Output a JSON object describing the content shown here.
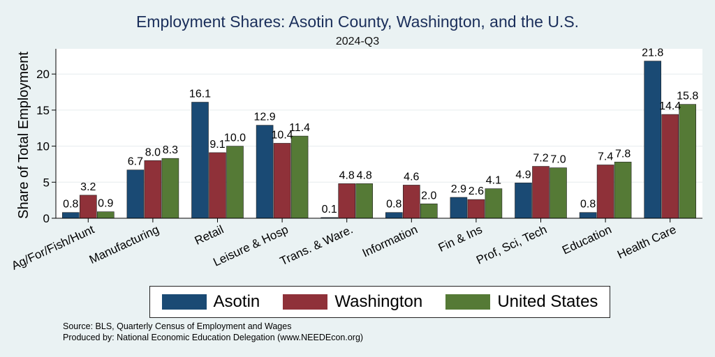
{
  "chart_data": {
    "type": "bar",
    "title": "Employment Shares: Asotin County, Washington, and the U.S.",
    "subtitle": "2024-Q3",
    "ylabel": "Share of Total Employment",
    "xlabel": "",
    "ylim": [
      0,
      23.5
    ],
    "yticks": [
      0,
      5,
      10,
      15,
      20
    ],
    "grid": true,
    "legend": "bottom",
    "categories": [
      "Ag/For/Fish/Hunt",
      "Manufacturing",
      "Retail",
      "Leisure & Hosp",
      "Trans. & Ware.",
      "Information",
      "Fin & Ins",
      "Prof, Sci, Tech",
      "Education",
      "Health Care"
    ],
    "series": [
      {
        "name": "Asotin",
        "color": "#1a4a74",
        "values": [
          0.8,
          6.7,
          16.1,
          12.9,
          0.1,
          0.8,
          2.9,
          4.9,
          0.8,
          21.8
        ]
      },
      {
        "name": "Washington",
        "color": "#8f3139",
        "values": [
          3.2,
          8.0,
          9.1,
          10.4,
          4.8,
          4.6,
          2.6,
          7.2,
          7.4,
          14.4
        ]
      },
      {
        "name": "United States",
        "color": "#557a36",
        "values": [
          0.9,
          8.3,
          10.0,
          11.4,
          4.8,
          2.0,
          4.1,
          7.0,
          7.8,
          15.8
        ]
      }
    ]
  },
  "footer": {
    "source": "Source: BLS, Quarterly Census of Employment and Wages",
    "produced": "Produced by: National Economic Education Delegation (www.NEEDEcon.org)"
  }
}
